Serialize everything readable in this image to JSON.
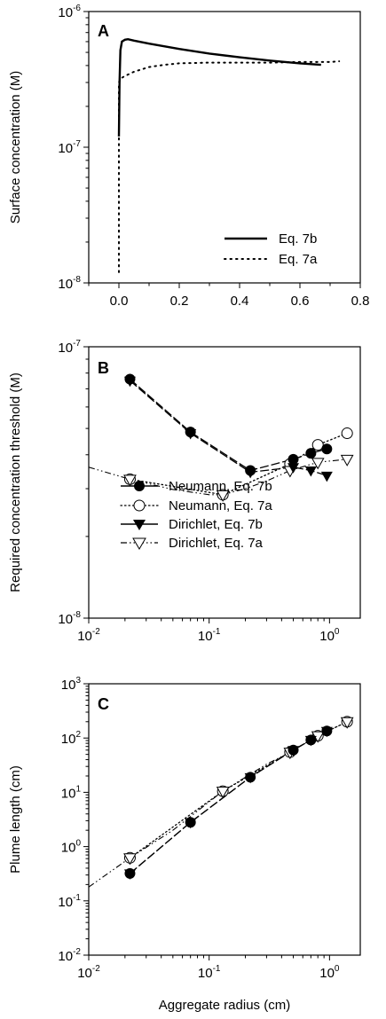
{
  "chart_data": [
    {
      "panel": "A",
      "type": "line",
      "xlabel": "",
      "ylabel": "Surface concentration (M)",
      "xlim": [
        -0.1,
        0.8
      ],
      "ylim": [
        1e-08,
        1e-06
      ],
      "yscale": "log",
      "x_ticks": [
        "0.0",
        "0.2",
        "0.4",
        "0.6",
        "0.8"
      ],
      "y_ticks": [
        {
          "base": "10",
          "exp": "-8"
        },
        {
          "base": "10",
          "exp": "-7"
        },
        {
          "base": "10",
          "exp": "-6"
        }
      ],
      "legend_position": "bottom-right",
      "series": [
        {
          "name": "Eq. 7b",
          "style": "solid",
          "x": [
            0.0,
            0.002,
            0.005,
            0.01,
            0.02,
            0.03,
            0.05,
            0.1,
            0.2,
            0.3,
            0.4,
            0.5,
            0.6,
            0.67
          ],
          "y": [
            1.2e-07,
            3e-07,
            5.2e-07,
            6e-07,
            6.2e-07,
            6.25e-07,
            6.1e-07,
            5.8e-07,
            5.3e-07,
            4.9e-07,
            4.6e-07,
            4.35e-07,
            4.15e-07,
            4.05e-07
          ]
        },
        {
          "name": "Eq. 7a",
          "style": "dotted",
          "x": [
            0.0,
            0.0,
            0.0,
            0.0,
            0.005,
            0.02,
            0.05,
            0.1,
            0.15,
            0.2,
            0.3,
            0.4,
            0.5,
            0.6,
            0.7,
            0.73
          ],
          "y": [
            1.2e-08,
            5e-08,
            1.5e-07,
            3e-07,
            3.2e-07,
            3.35e-07,
            3.6e-07,
            3.9e-07,
            4.05e-07,
            4.15e-07,
            4.2e-07,
            4.2e-07,
            4.2e-07,
            4.25e-07,
            4.25e-07,
            4.3e-07
          ]
        }
      ]
    },
    {
      "panel": "B",
      "type": "line",
      "xlabel": "",
      "ylabel": "Required concentration threshold (M)",
      "xscale": "log",
      "yscale": "log",
      "xlim": [
        0.01,
        1.8
      ],
      "ylim": [
        1e-08,
        1e-07
      ],
      "x_ticks": [
        {
          "base": "10",
          "exp": "-2"
        },
        {
          "base": "10",
          "exp": "-1"
        },
        {
          "base": "10",
          "exp": "0"
        }
      ],
      "y_ticks": [
        {
          "base": "10",
          "exp": "-8"
        },
        {
          "base": "10",
          "exp": "-7"
        }
      ],
      "legend_position": "bottom-left",
      "series": [
        {
          "name": "Neumann, Eq. 7b",
          "marker": "circle-filled",
          "style": "long-dash",
          "x": [
            0.022,
            0.07,
            0.22,
            0.5,
            0.7,
            0.95
          ],
          "y": [
            7.6e-08,
            4.85e-08,
            3.5e-08,
            3.85e-08,
            4.05e-08,
            4.2e-08
          ]
        },
        {
          "name": "Neumann, Eq. 7a",
          "marker": "circle-open",
          "style": "dotted",
          "x": [
            0.022,
            0.13,
            0.47,
            0.8,
            1.4
          ],
          "y": [
            3.25e-08,
            2.85e-08,
            3.7e-08,
            4.35e-08,
            4.8e-08
          ]
        },
        {
          "name": "Dirichlet, Eq. 7b",
          "marker": "triangle-down-filled",
          "style": "long-dash",
          "x": [
            0.022,
            0.07,
            0.22,
            0.5,
            0.7,
            0.95
          ],
          "y": [
            7.5e-08,
            4.8e-08,
            3.45e-08,
            3.6e-08,
            3.5e-08,
            3.35e-08
          ]
        },
        {
          "name": "Dirichlet, Eq. 7a",
          "marker": "triangle-down-open",
          "style": "dash-dot-dot",
          "x": [
            0.022,
            0.13,
            0.47,
            0.8,
            1.4
          ],
          "y": [
            3.25e-08,
            2.85e-08,
            3.5e-08,
            3.75e-08,
            3.85e-08
          ]
        }
      ],
      "dashdot_curve": {
        "x": [
          0.01,
          0.022,
          0.05,
          0.1,
          0.13,
          0.2,
          0.3,
          0.47,
          0.8,
          1.4
        ],
        "y": [
          3.6e-08,
          3.25e-08,
          2.98e-08,
          2.85e-08,
          2.85e-08,
          3e-08,
          3.2e-08,
          3.5e-08,
          3.75e-08,
          3.85e-08
        ]
      }
    },
    {
      "panel": "C",
      "type": "line",
      "xlabel": "Aggregate radius (cm)",
      "ylabel": "Plume length (cm)",
      "xscale": "log",
      "yscale": "log",
      "xlim": [
        0.01,
        1.8
      ],
      "ylim": [
        0.01,
        1000
      ],
      "x_ticks": [
        {
          "base": "10",
          "exp": "-2"
        },
        {
          "base": "10",
          "exp": "-1"
        },
        {
          "base": "10",
          "exp": "0"
        }
      ],
      "y_ticks": [
        {
          "base": "10",
          "exp": "-2"
        },
        {
          "base": "10",
          "exp": "-1"
        },
        {
          "base": "10",
          "exp": "0"
        },
        {
          "base": "10",
          "exp": "1"
        },
        {
          "base": "10",
          "exp": "2"
        },
        {
          "base": "10",
          "exp": "3"
        }
      ],
      "series": [
        {
          "marker": "circle-filled",
          "style": "long-dash",
          "x": [
            0.022,
            0.07,
            0.22,
            0.5,
            0.7,
            0.95
          ],
          "y": [
            0.32,
            2.8,
            19,
            60,
            92,
            135
          ]
        },
        {
          "marker": "circle-open",
          "style": "dotted",
          "x": [
            0.022,
            0.13,
            0.47,
            0.8,
            1.4
          ],
          "y": [
            0.62,
            10.5,
            55,
            110,
            200
          ]
        },
        {
          "marker": "triangle-down-filled",
          "style": "long-dash",
          "x": [
            0.022,
            0.07,
            0.22,
            0.5,
            0.7,
            0.95
          ],
          "y": [
            0.32,
            2.8,
            19,
            60,
            92,
            135
          ]
        },
        {
          "marker": "triangle-down-open",
          "style": "dash-dot-dot",
          "x": [
            0.022,
            0.13,
            0.47,
            0.8,
            1.4
          ],
          "y": [
            0.62,
            10.5,
            55,
            110,
            200
          ]
        }
      ],
      "dashdot_curve": {
        "x": [
          0.01,
          0.022,
          0.05,
          0.13,
          0.3,
          0.47,
          0.8,
          1.4
        ],
        "y": [
          0.18,
          0.62,
          2.0,
          10.5,
          33,
          55,
          110,
          200
        ]
      }
    }
  ]
}
